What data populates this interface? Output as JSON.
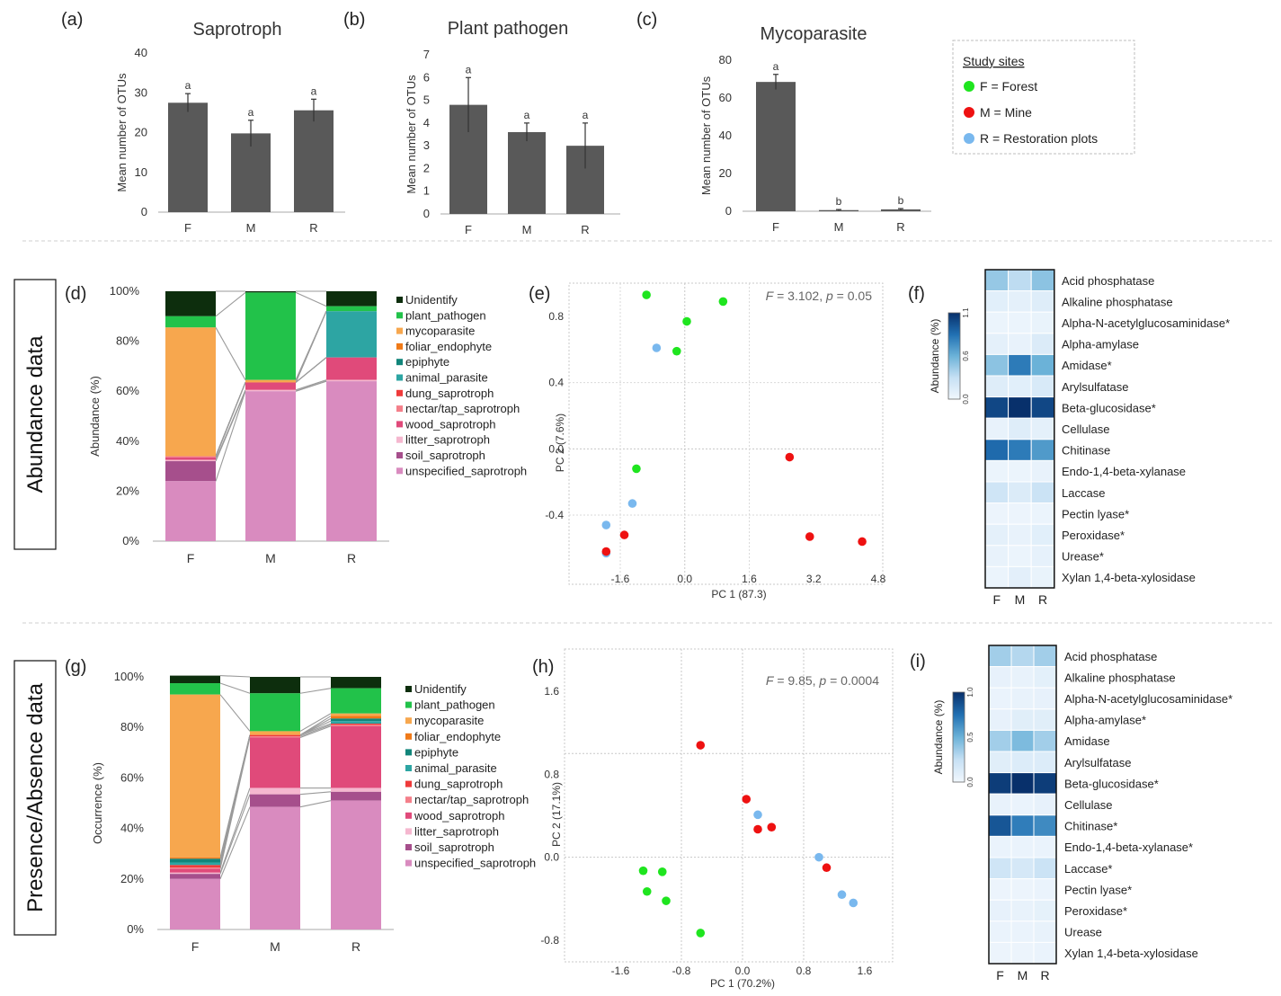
{
  "chart_data": {
    "panel_labels": {
      "a": "(a)",
      "b": "(b)",
      "c": "(c)",
      "d": "(d)",
      "e": "(e)",
      "f": "(f)",
      "g": "(g)",
      "h": "(h)",
      "i": "(i)"
    },
    "row_labels": {
      "abundance": "Abundance data",
      "presence": "Presence/Absence data"
    },
    "study_sites": {
      "title": "Study sites",
      "items": [
        {
          "text": "F = Forest",
          "color": "#1fe51f"
        },
        {
          "text": "M =  Mine",
          "color": "#ee1111"
        },
        {
          "text": "R =  Restoration plots",
          "color": "#79b8ee"
        }
      ]
    },
    "bar_panels": [
      {
        "title": "Saprotroph",
        "ylabel": "Mean number of OTUs",
        "ylim": [
          0,
          40
        ],
        "yticks": [
          0,
          10,
          20,
          30,
          40
        ],
        "categories": [
          "F",
          "M",
          "R"
        ],
        "values": [
          27.5,
          19.8,
          25.6
        ],
        "errors": [
          2.3,
          3.3,
          2.8
        ],
        "letters": [
          "a",
          "a",
          "a"
        ]
      },
      {
        "title": "Plant pathogen",
        "ylabel": "Mean number of OTUs",
        "ylim": [
          0,
          7
        ],
        "yticks": [
          0,
          1,
          2,
          3,
          4,
          5,
          6,
          7
        ],
        "categories": [
          "F",
          "M",
          "R"
        ],
        "values": [
          4.8,
          3.6,
          3.0
        ],
        "errors": [
          1.2,
          0.4,
          1.0
        ],
        "letters": [
          "a",
          "a",
          "a"
        ]
      },
      {
        "title": "Mycoparasite",
        "ylabel": "Mean number of OTUs",
        "ylim": [
          0,
          80
        ],
        "yticks": [
          0,
          20,
          40,
          60,
          80
        ],
        "categories": [
          "F",
          "M",
          "R"
        ],
        "values": [
          68.5,
          0.6,
          1.0
        ],
        "errors": [
          4.0,
          0.3,
          0.4
        ],
        "letters": [
          "a",
          "b",
          "b"
        ]
      }
    ],
    "guilds": [
      "Unidentify",
      "plant_pathogen",
      "mycoparasite",
      "foliar_endophyte",
      "epiphyte",
      "animal_parasite",
      "dung_saprotroph",
      "nectar/tap_saprotroph",
      "wood_saprotroph",
      "litter_saprotroph",
      "soil_saprotroph",
      "unspecified_saprotroph"
    ],
    "guild_colors": [
      "#0d2e0d",
      "#22c24a",
      "#f7a74e",
      "#f07a18",
      "#11857a",
      "#2da5a3",
      "#ef3a3a",
      "#f47f8a",
      "#e04a7a",
      "#f5b7cf",
      "#a64f8c",
      "#d98bbf"
    ],
    "stacked": [
      {
        "ylabel": "Abundance (%)",
        "yticks": [
          "0%",
          "20%",
          "40%",
          "60%",
          "80%",
          "100%"
        ],
        "categories": [
          "F",
          "M",
          "R"
        ],
        "values": {
          "F": [
            10,
            4.5,
            51.5,
            0,
            0,
            0,
            0,
            0.5,
            1,
            0.5,
            8,
            24
          ],
          "M": [
            0.5,
            35,
            1,
            0,
            0,
            0,
            0,
            0,
            3,
            0.5,
            0,
            60
          ],
          "R": [
            6,
            2,
            0,
            0,
            0,
            18.5,
            0,
            0,
            9,
            0.5,
            0,
            64
          ]
        }
      },
      {
        "ylabel": "Occurrence (%)",
        "yticks": [
          "0%",
          "20%",
          "40%",
          "60%",
          "80%",
          "100%"
        ],
        "categories": [
          "F",
          "M",
          "R"
        ],
        "values": {
          "F": [
            3,
            4.5,
            64.5,
            0.5,
            1.5,
            1,
            1,
            0.5,
            1.5,
            0.5,
            2,
            20
          ],
          "M": [
            6.5,
            15,
            1.5,
            0,
            0,
            0,
            0.5,
            0.5,
            20,
            2.5,
            5,
            48.5
          ],
          "R": [
            4.5,
            10,
            1,
            1,
            1,
            1,
            0.5,
            0.5,
            24.5,
            1.5,
            3.5,
            51
          ]
        }
      }
    ],
    "pca": [
      {
        "annotation_italic_1": "F",
        "annotation_1": " = 3.102, ",
        "annotation_italic_2": "p",
        "annotation_2": " = 0.05",
        "xlabel": "PC 1 (87.3)",
        "ylabel": "PC 2 (7.6%)",
        "xlim": [
          -2.4,
          4.8
        ],
        "ylim": [
          -0.82,
          0.96
        ],
        "xticks": [
          -1.6,
          0.0,
          1.6,
          3.2,
          4.8
        ],
        "yticks": [
          -0.4,
          0.0,
          0.4,
          0.8
        ],
        "points": [
          {
            "x": -0.95,
            "y": 0.93,
            "site": "F"
          },
          {
            "x": 0.95,
            "y": 0.89,
            "site": "F"
          },
          {
            "x": 0.05,
            "y": 0.77,
            "site": "F"
          },
          {
            "x": -0.2,
            "y": 0.59,
            "site": "F"
          },
          {
            "x": -1.2,
            "y": -0.12,
            "site": "F"
          },
          {
            "x": -0.7,
            "y": 0.61,
            "site": "R"
          },
          {
            "x": -1.3,
            "y": -0.33,
            "site": "R"
          },
          {
            "x": -1.95,
            "y": -0.46,
            "site": "R"
          },
          {
            "x": -1.95,
            "y": -0.63,
            "site": "R"
          },
          {
            "x": 2.6,
            "y": -0.05,
            "site": "M"
          },
          {
            "x": 3.1,
            "y": -0.53,
            "site": "M"
          },
          {
            "x": 4.4,
            "y": -0.56,
            "site": "M"
          },
          {
            "x": -1.5,
            "y": -0.52,
            "site": "M"
          },
          {
            "x": -1.95,
            "y": -0.62,
            "site": "M"
          }
        ]
      },
      {
        "annotation_italic_1": "F",
        "annotation_1": " = 9.85, ",
        "annotation_italic_2": "p",
        "annotation_2": " = 0.0004",
        "xlabel": "PC 1 (70.2%)",
        "ylabel": "PC 2 (17.1%)",
        "xlim": [
          -2.0,
          2.0
        ],
        "ylim": [
          -1.0,
          2.0
        ],
        "xticks": [
          -1.6,
          -0.8,
          0.0,
          0.8,
          1.6
        ],
        "yticks": [
          -0.8,
          0.0,
          0.8,
          1.6
        ],
        "points": [
          {
            "x": -1.3,
            "y": -0.13,
            "site": "F"
          },
          {
            "x": -1.05,
            "y": -0.14,
            "site": "F"
          },
          {
            "x": -1.25,
            "y": -0.33,
            "site": "F"
          },
          {
            "x": -1.0,
            "y": -0.42,
            "site": "F"
          },
          {
            "x": -0.55,
            "y": -0.73,
            "site": "F"
          },
          {
            "x": -0.55,
            "y": 1.08,
            "site": "M"
          },
          {
            "x": 0.05,
            "y": 0.56,
            "site": "M"
          },
          {
            "x": 0.2,
            "y": 0.27,
            "site": "M"
          },
          {
            "x": 0.38,
            "y": 0.29,
            "site": "M"
          },
          {
            "x": 1.1,
            "y": -0.1,
            "site": "M"
          },
          {
            "x": 0.2,
            "y": 0.41,
            "site": "R"
          },
          {
            "x": 1.0,
            "y": 0.0,
            "site": "R"
          },
          {
            "x": 1.3,
            "y": -0.36,
            "site": "R"
          },
          {
            "x": 1.45,
            "y": -0.44,
            "site": "R"
          }
        ]
      }
    ],
    "heatmaps": [
      {
        "legend_title": "Abundance (%)",
        "legend_ticks": [
          "0.0",
          "0.6",
          "1.1"
        ],
        "vmax": 1.1,
        "columns": [
          "F",
          "M",
          "R"
        ],
        "rows": [
          "Acid phosphatase",
          "Alkaline phosphatase",
          "Alpha-N-acetylglucosaminidase*",
          "Alpha-amylase",
          "Amidase*",
          "Arylsulfatase",
          "Beta-glucosidase*",
          "Cellulase",
          "Chitinase",
          "Endo-1,4-beta-xylanase",
          "Laccase",
          "Pectin lyase*",
          "Peroxidase*",
          "Urease*",
          "Xylan 1,4-beta-xylosidase"
        ],
        "values": [
          [
            0.42,
            0.3,
            0.45
          ],
          [
            0.1,
            0.08,
            0.12
          ],
          [
            0.04,
            0.04,
            0.05
          ],
          [
            0.08,
            0.06,
            0.14
          ],
          [
            0.45,
            0.78,
            0.55
          ],
          [
            0.12,
            0.1,
            0.16
          ],
          [
            1.0,
            1.1,
            1.0
          ],
          [
            0.06,
            0.12,
            0.08
          ],
          [
            0.85,
            0.78,
            0.65
          ],
          [
            0.04,
            0.04,
            0.06
          ],
          [
            0.22,
            0.14,
            0.24
          ],
          [
            0.03,
            0.03,
            0.04
          ],
          [
            0.08,
            0.06,
            0.1
          ],
          [
            0.06,
            0.04,
            0.07
          ],
          [
            0.04,
            0.09,
            0.05
          ]
        ]
      },
      {
        "legend_title": "Abundance (%)",
        "legend_ticks": [
          "0.0",
          "0.5",
          "1.0"
        ],
        "vmax": 1.0,
        "columns": [
          "F",
          "M",
          "R"
        ],
        "rows": [
          "Acid phosphatase",
          "Alkaline phosphatase",
          "Alpha-N-acetylglucosaminidase*",
          "Alpha-amylase*",
          "Amidase",
          "Arylsulfatase",
          "Beta-glucosidase*",
          "Cellulase",
          "Chitinase*",
          "Endo-1,4-beta-xylanase*",
          "Laccase*",
          "Pectin lyase*",
          "Peroxidase*",
          "Urease",
          "Xylan 1,4-beta-xylosidase"
        ],
        "values": [
          [
            0.35,
            0.3,
            0.35
          ],
          [
            0.06,
            0.05,
            0.08
          ],
          [
            0.04,
            0.05,
            0.06
          ],
          [
            0.06,
            0.1,
            0.1
          ],
          [
            0.35,
            0.45,
            0.35
          ],
          [
            0.1,
            0.12,
            0.12
          ],
          [
            0.95,
            1.0,
            0.95
          ],
          [
            0.05,
            0.04,
            0.06
          ],
          [
            0.85,
            0.7,
            0.65
          ],
          [
            0.04,
            0.04,
            0.04
          ],
          [
            0.2,
            0.16,
            0.22
          ],
          [
            0.03,
            0.03,
            0.04
          ],
          [
            0.06,
            0.05,
            0.07
          ],
          [
            0.04,
            0.04,
            0.05
          ],
          [
            0.03,
            0.03,
            0.04
          ]
        ]
      }
    ]
  }
}
